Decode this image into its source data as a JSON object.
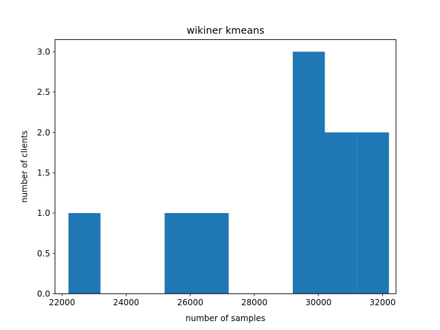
{
  "chart_data": {
    "type": "bar",
    "title": "wikiner kmeans",
    "xlabel": "number of samples",
    "ylabel": "number of clients",
    "xlim": [
      21780,
      32420
    ],
    "ylim": [
      0,
      3.15
    ],
    "xticks": [
      22000,
      24000,
      26000,
      28000,
      30000,
      32000
    ],
    "yticks": [
      0.0,
      0.5,
      1.0,
      1.5,
      2.0,
      2.5,
      3.0
    ],
    "xtick_labels": [
      "22000",
      "24000",
      "26000",
      "28000",
      "30000",
      "32000"
    ],
    "ytick_labels": [
      "0.0",
      "0.5",
      "1.0",
      "1.5",
      "2.0",
      "2.5",
      "3.0"
    ],
    "bins": [
      {
        "x0": 22200,
        "x1": 23200,
        "count": 1
      },
      {
        "x0": 23200,
        "x1": 24200,
        "count": 0
      },
      {
        "x0": 24200,
        "x1": 25200,
        "count": 0
      },
      {
        "x0": 25200,
        "x1": 26200,
        "count": 1
      },
      {
        "x0": 26200,
        "x1": 27200,
        "count": 1
      },
      {
        "x0": 27200,
        "x1": 28200,
        "count": 0
      },
      {
        "x0": 28200,
        "x1": 29200,
        "count": 0
      },
      {
        "x0": 29200,
        "x1": 30200,
        "count": 3
      },
      {
        "x0": 30200,
        "x1": 31200,
        "count": 2
      },
      {
        "x0": 31200,
        "x1": 32200,
        "count": 2
      }
    ],
    "bar_color": "#1f77b4",
    "grid": false,
    "legend": "none"
  }
}
